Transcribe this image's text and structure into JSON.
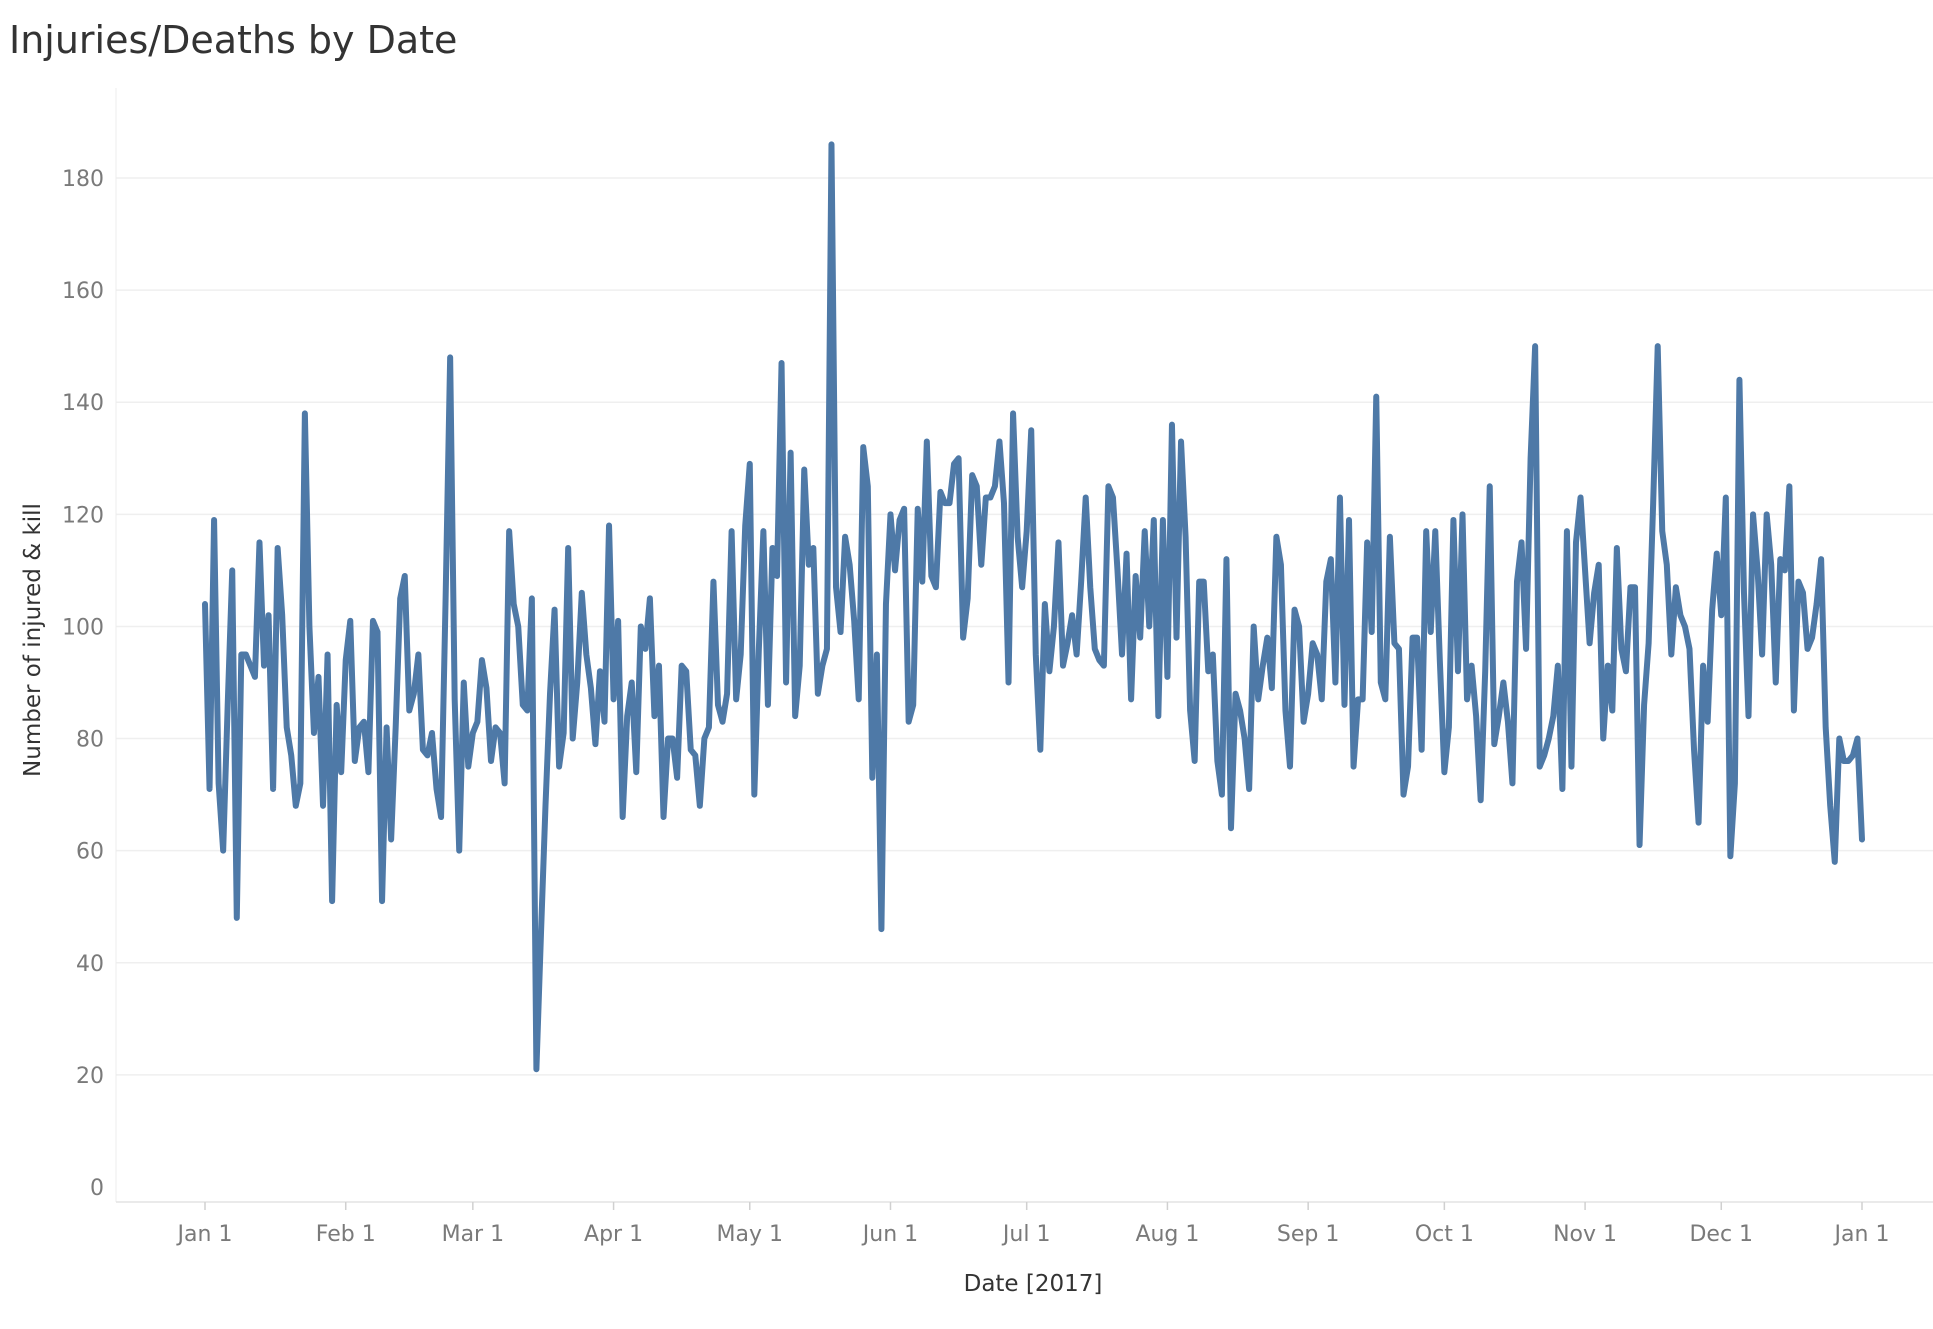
{
  "chart_data": {
    "type": "line",
    "title": "Injuries/Deaths by Date",
    "xlabel": "Date [2017]",
    "ylabel": "Number of injured & kill",
    "ylim": [
      0,
      195
    ],
    "y_ticks": [
      0,
      20,
      40,
      60,
      80,
      100,
      120,
      140,
      160,
      180
    ],
    "x_tick_labels": [
      "Jan 1",
      "Feb 1",
      "Mar 1",
      "Apr 1",
      "May 1",
      "Jun 1",
      "Jul 1",
      "Aug 1",
      "Sep 1",
      "Oct 1",
      "Nov 1",
      "Dec 1",
      "Jan 1"
    ],
    "x_tick_dates": [
      "2017-01-01",
      "2017-02-01",
      "2017-03-01",
      "2017-04-01",
      "2017-05-01",
      "2017-06-01",
      "2017-07-01",
      "2017-08-01",
      "2017-09-01",
      "2017-10-01",
      "2017-11-01",
      "2017-12-01",
      "2018-01-01"
    ],
    "grid": true,
    "line_color": "#4e79a7",
    "series": [
      {
        "x_start": "2017-01-01",
        "x_end": "2017-12-31",
        "interval": "day",
        "values": [
          104,
          71,
          119,
          72,
          60,
          86,
          110,
          48,
          95,
          95,
          93,
          91,
          115,
          93,
          102,
          71,
          114,
          102,
          82,
          77,
          68,
          72,
          138,
          100,
          81,
          91,
          68,
          95,
          51,
          86,
          74,
          94,
          101,
          76,
          82,
          83,
          74,
          101,
          99,
          51,
          82,
          62,
          82,
          105,
          109,
          85,
          88,
          95,
          78,
          77,
          81,
          71,
          66,
          105,
          148,
          87,
          60,
          90,
          75,
          81,
          83,
          94,
          89,
          76,
          82,
          81,
          72,
          117,
          104,
          100,
          86,
          85,
          105,
          21,
          45,
          68,
          88,
          103,
          75,
          81,
          114,
          80,
          90,
          106,
          95,
          89,
          79,
          92,
          83,
          118,
          87,
          101,
          66,
          84,
          90,
          74,
          100,
          96,
          105,
          84,
          93,
          66,
          80,
          80,
          73,
          93,
          92,
          78,
          77,
          68,
          80,
          82,
          108,
          86,
          83,
          88,
          117,
          87,
          95,
          118,
          129,
          70,
          96,
          117,
          86,
          114,
          109,
          147,
          90,
          131,
          84,
          93,
          128,
          111,
          114,
          88,
          93,
          96,
          186,
          107,
          99,
          116,
          111,
          101,
          87,
          132,
          125,
          73,
          95,
          46,
          104,
          120,
          110,
          119,
          121,
          83,
          86,
          121,
          108,
          133,
          109,
          107,
          124,
          122,
          122,
          129,
          130,
          98,
          105,
          127,
          125,
          111,
          123,
          123,
          125,
          133,
          122,
          90,
          138,
          116,
          107,
          117,
          135,
          95,
          78,
          104,
          92,
          100,
          115,
          93,
          97,
          102,
          95,
          108,
          123,
          107,
          96,
          94,
          93,
          125,
          123,
          110,
          95,
          113,
          87,
          109,
          98,
          117,
          100,
          119,
          84,
          119,
          91,
          136,
          98,
          133,
          116,
          85,
          76,
          108,
          108,
          92,
          95,
          76,
          70,
          112,
          64,
          88,
          85,
          80,
          71,
          100,
          87,
          93,
          98,
          89,
          116,
          111,
          85,
          75,
          103,
          100,
          83,
          88,
          97,
          95,
          87,
          108,
          112,
          90,
          123,
          86,
          119,
          75,
          87,
          87,
          115,
          99,
          141,
          90,
          87,
          116,
          97,
          96,
          70,
          75,
          98,
          98,
          78,
          117,
          99,
          117,
          94,
          74,
          82,
          119,
          92,
          120,
          87,
          93,
          84,
          69,
          92,
          125,
          79,
          84,
          90,
          83,
          72,
          108,
          115,
          96,
          130,
          150,
          75,
          77,
          80,
          84,
          93,
          71,
          117,
          75,
          115,
          123,
          110,
          97,
          106,
          111,
          80,
          93,
          85,
          114,
          96,
          92,
          107,
          107,
          61,
          86,
          97,
          122,
          150,
          117,
          111,
          95,
          107,
          102,
          100,
          96,
          78,
          65,
          93,
          83,
          103,
          113,
          102,
          123,
          59,
          72,
          144,
          106,
          84,
          120,
          110,
          95,
          120,
          111,
          90,
          112,
          110,
          125,
          85,
          108,
          106,
          96,
          98,
          104,
          112,
          82,
          68,
          58,
          80,
          76,
          76,
          77,
          80,
          62
        ]
      }
    ]
  }
}
